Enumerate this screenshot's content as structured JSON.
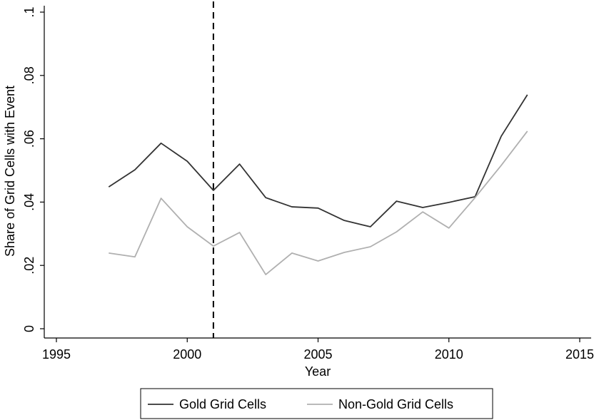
{
  "chart_data": {
    "type": "line",
    "x_label": "Year",
    "y_label": "Share of Grid Cells with Event",
    "x": [
      1997,
      1998,
      1999,
      2000,
      2001,
      2002,
      2003,
      2004,
      2005,
      2006,
      2007,
      2008,
      2009,
      2010,
      2011,
      2012,
      2013
    ],
    "series": [
      {
        "name": "Gold Grid Cells",
        "color": "#333333",
        "values": [
          0.0448,
          0.0502,
          0.0586,
          0.0529,
          0.0437,
          0.052,
          0.0414,
          0.0385,
          0.0381,
          0.0342,
          0.0322,
          0.0403,
          0.0383,
          0.0399,
          0.0417,
          0.0608,
          0.0739
        ]
      },
      {
        "name": "Non-Gold Grid Cells",
        "color": "#b0b0b0",
        "values": [
          0.0239,
          0.0227,
          0.0412,
          0.0322,
          0.0261,
          0.0304,
          0.0171,
          0.0239,
          0.0214,
          0.0241,
          0.0259,
          0.0306,
          0.0369,
          0.0318,
          0.0414,
          0.0516,
          0.0624
        ]
      }
    ],
    "xlim": [
      1995,
      2015
    ],
    "xticks": [
      1995,
      2000,
      2005,
      2010,
      2015
    ],
    "ylim": [
      0,
      0.1
    ],
    "yticks": [
      0,
      {
        "value": 0.02,
        "label": ".02"
      },
      {
        "value": 0.04,
        "label": ".04"
      },
      {
        "value": 0.06,
        "label": ".06"
      },
      {
        "value": 0.08,
        "label": ".08"
      },
      {
        "value": 0.1,
        "label": ".1"
      }
    ],
    "vline": 2001,
    "grid": false,
    "legend": "bottom"
  }
}
